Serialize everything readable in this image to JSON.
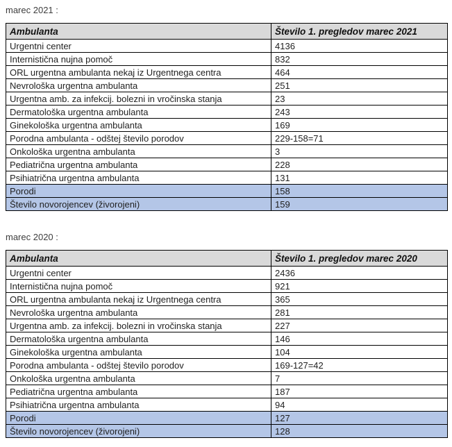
{
  "colors": {
    "page_bg": "#ffffff",
    "header_bg": "#d9d9d9",
    "highlight_bg": "#b4c6e7",
    "border": "#000000",
    "text": "#1f1f1f",
    "label_text": "#3d3d3d"
  },
  "sections": [
    {
      "label": "marec 2021 :",
      "columns": [
        "Ambulanta",
        "Število 1. pregledov marec 2021"
      ],
      "rows": [
        {
          "ambulanta": "Urgentni center",
          "value": "4136",
          "highlight": false
        },
        {
          "ambulanta": "Internistična nujna pomoč",
          "value": "832",
          "highlight": false
        },
        {
          "ambulanta": "ORL urgentna ambulanta nekaj iz Urgentnega centra",
          "value": "464",
          "highlight": false
        },
        {
          "ambulanta": "Nevrološka urgentna ambulanta",
          "value": "251",
          "highlight": false
        },
        {
          "ambulanta": "Urgentna amb. za infekcij. bolezni in vročinska stanja",
          "value": "23",
          "highlight": false
        },
        {
          "ambulanta": "Dermatološka urgentna ambulanta",
          "value": "243",
          "highlight": false
        },
        {
          "ambulanta": "Ginekološka urgentna ambulanta",
          "value": "169",
          "highlight": false
        },
        {
          "ambulanta": "Porodna ambulanta - odštej število porodov",
          "value": "229-158=71",
          "highlight": false
        },
        {
          "ambulanta": "Onkološka urgentna ambulanta",
          "value": "3",
          "highlight": false
        },
        {
          "ambulanta": "Pediatrična urgentna ambulanta",
          "value": "228",
          "highlight": false
        },
        {
          "ambulanta": "Psihiatrična urgentna ambulanta",
          "value": "131",
          "highlight": false
        },
        {
          "ambulanta": "Porodi",
          "value": "158",
          "highlight": true
        },
        {
          "ambulanta": "Število novorojencev (živorojeni)",
          "value": "159",
          "highlight": true
        }
      ]
    },
    {
      "label": "marec 2020 :",
      "columns": [
        "Ambulanta",
        "Število 1. pregledov marec 2020"
      ],
      "rows": [
        {
          "ambulanta": "Urgentni center",
          "value": "2436",
          "highlight": false
        },
        {
          "ambulanta": "Internistična nujna pomoč",
          "value": "921",
          "highlight": false
        },
        {
          "ambulanta": "ORL urgentna ambulanta nekaj iz Urgentnega centra",
          "value": "365",
          "highlight": false
        },
        {
          "ambulanta": "Nevrološka urgentna ambulanta",
          "value": "281",
          "highlight": false
        },
        {
          "ambulanta": "Urgentna amb. za infekcij. bolezni in vročinska stanja",
          "value": "227",
          "highlight": false
        },
        {
          "ambulanta": "Dermatološka urgentna ambulanta",
          "value": "146",
          "highlight": false
        },
        {
          "ambulanta": "Ginekološka urgentna ambulanta",
          "value": "104",
          "highlight": false
        },
        {
          "ambulanta": "Porodna ambulanta - odštej število porodov",
          "value": "169-127=42",
          "highlight": false
        },
        {
          "ambulanta": "Onkološka urgentna ambulanta",
          "value": "7",
          "highlight": false
        },
        {
          "ambulanta": "Pediatrična urgentna ambulanta",
          "value": "187",
          "highlight": false
        },
        {
          "ambulanta": "Psihiatrična urgentna ambulanta",
          "value": "94",
          "highlight": false
        },
        {
          "ambulanta": "Porodi",
          "value": "127",
          "highlight": true
        },
        {
          "ambulanta": "Število novorojencev (živorojeni)",
          "value": "128",
          "highlight": true
        }
      ]
    }
  ]
}
